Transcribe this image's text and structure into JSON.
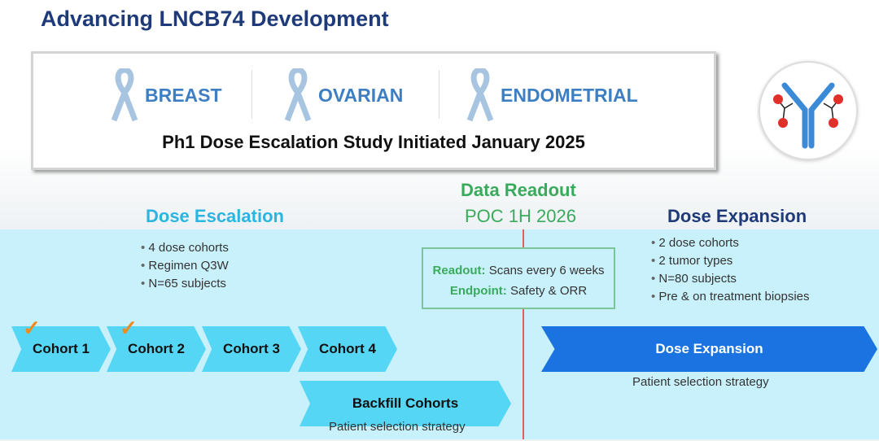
{
  "title": "Advancing LNCB74 Development",
  "indications": [
    "BREAST",
    "OVARIAN",
    "ENDOMETRIAL"
  ],
  "study": "Ph1 Dose Escalation Study Initiated January 2025",
  "readout": {
    "title": "Data Readout",
    "subtitle": "POC 1H 2026",
    "readout_label": "Readout:",
    "readout_value": "Scans every 6 weeks",
    "endpoint_label": "Endpoint:",
    "endpoint_value": "Safety & ORR"
  },
  "escalation": {
    "title": "Dose Escalation",
    "bullets": [
      "4 dose cohorts",
      "Regimen Q3W",
      "N=65 subjects"
    ],
    "cohorts": [
      {
        "label": "Cohort 1",
        "done": true
      },
      {
        "label": "Cohort 2",
        "done": true
      },
      {
        "label": "Cohort 3",
        "done": false
      },
      {
        "label": "Cohort 4",
        "done": false
      }
    ],
    "backfill": "Backfill Cohorts",
    "note": "Patient selection strategy"
  },
  "expansion": {
    "title": "Dose Expansion",
    "bullets": [
      "2 dose cohorts",
      "2 tumor types",
      "N=80 subjects",
      "Pre & on treatment biopsies"
    ],
    "bar": "Dose Expansion",
    "note": "Patient selection strategy"
  },
  "colors": {
    "navy": "#1f3a78",
    "cyan": "#2bb5e0",
    "green": "#3aaa5c",
    "chevron": "#55d6f5",
    "expansion": "#1a73e0",
    "check": "#f08a1c"
  }
}
